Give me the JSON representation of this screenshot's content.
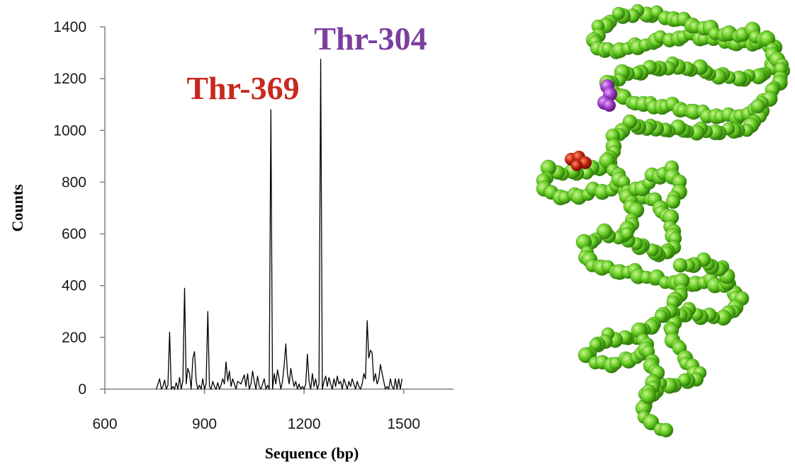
{
  "chart_data": {
    "type": "line",
    "title": "",
    "xlabel": "Sequence (bp)",
    "ylabel": "Counts",
    "xlim": [
      600,
      1650
    ],
    "ylim": [
      0,
      1400
    ],
    "xticks": [
      600,
      900,
      1200,
      1500
    ],
    "yticks": [
      0,
      200,
      400,
      600,
      800,
      1000,
      1200,
      1400
    ],
    "grid": false,
    "legend": "none",
    "line_color": "#000000",
    "series": [
      {
        "x": [
          755,
          765,
          770,
          775,
          780,
          785,
          790,
          795,
          800,
          805,
          810,
          815,
          820,
          825,
          830,
          835,
          840,
          845,
          850,
          855,
          860,
          865,
          870,
          875,
          880,
          885,
          890,
          895,
          900,
          905,
          910,
          915,
          920,
          925,
          930,
          935,
          940,
          945,
          950,
          955,
          960,
          965,
          970,
          975,
          980,
          985,
          990,
          995,
          1000,
          1010,
          1020,
          1025,
          1030,
          1035,
          1040,
          1045,
          1050,
          1055,
          1060,
          1065,
          1070,
          1075,
          1080,
          1085,
          1090,
          1095,
          1100,
          1105,
          1110,
          1115,
          1120,
          1125,
          1130,
          1135,
          1140,
          1145,
          1150,
          1155,
          1160,
          1165,
          1170,
          1175,
          1180,
          1185,
          1190,
          1195,
          1200,
          1205,
          1210,
          1215,
          1220,
          1225,
          1230,
          1235,
          1240,
          1245,
          1250,
          1255,
          1260,
          1265,
          1270,
          1275,
          1280,
          1285,
          1290,
          1295,
          1300,
          1305,
          1310,
          1315,
          1320,
          1325,
          1330,
          1335,
          1340,
          1345,
          1350,
          1355,
          1360,
          1365,
          1370,
          1375,
          1380,
          1385,
          1390,
          1395,
          1400,
          1405,
          1410,
          1415,
          1420,
          1425,
          1430,
          1435,
          1440,
          1445,
          1450,
          1455,
          1460,
          1465,
          1470,
          1475,
          1480,
          1485,
          1490,
          1495
        ],
        "y": [
          0,
          40,
          0,
          10,
          35,
          0,
          15,
          220,
          0,
          10,
          0,
          25,
          0,
          45,
          0,
          30,
          390,
          20,
          80,
          60,
          0,
          120,
          145,
          30,
          0,
          15,
          0,
          40,
          0,
          20,
          300,
          10,
          0,
          30,
          10,
          0,
          25,
          0,
          15,
          40,
          20,
          105,
          30,
          70,
          10,
          40,
          20,
          0,
          30,
          20,
          55,
          10,
          60,
          0,
          20,
          70,
          30,
          0,
          50,
          10,
          0,
          20,
          40,
          0,
          15,
          0,
          1080,
          0,
          60,
          20,
          75,
          40,
          0,
          30,
          90,
          175,
          60,
          20,
          80,
          40,
          10,
          30,
          0,
          20,
          0,
          10,
          0,
          20,
          135,
          30,
          0,
          60,
          10,
          40,
          0,
          20,
          1275,
          0,
          30,
          50,
          10,
          45,
          20,
          0,
          40,
          10,
          50,
          20,
          30,
          0,
          40,
          20,
          0,
          30,
          10,
          40,
          20,
          0,
          30,
          10,
          0,
          20,
          60,
          40,
          265,
          120,
          150,
          140,
          30,
          60,
          20,
          40,
          95,
          60,
          30,
          0,
          10,
          0,
          40,
          10,
          0,
          40,
          0,
          40,
          0,
          40
        ]
      }
    ],
    "annotations": [
      {
        "text": "Thr-304",
        "x": 1250,
        "y": 1275,
        "color": "#7b3fa0"
      },
      {
        "text": "Thr-369",
        "x": 1100,
        "y": 1080,
        "color": "#c8281e"
      }
    ]
  },
  "figure": {
    "highlight_colors": {
      "thr-304": "#9b3bc4",
      "thr-369": "#c2240f"
    },
    "structure_color": "#66cc22"
  }
}
